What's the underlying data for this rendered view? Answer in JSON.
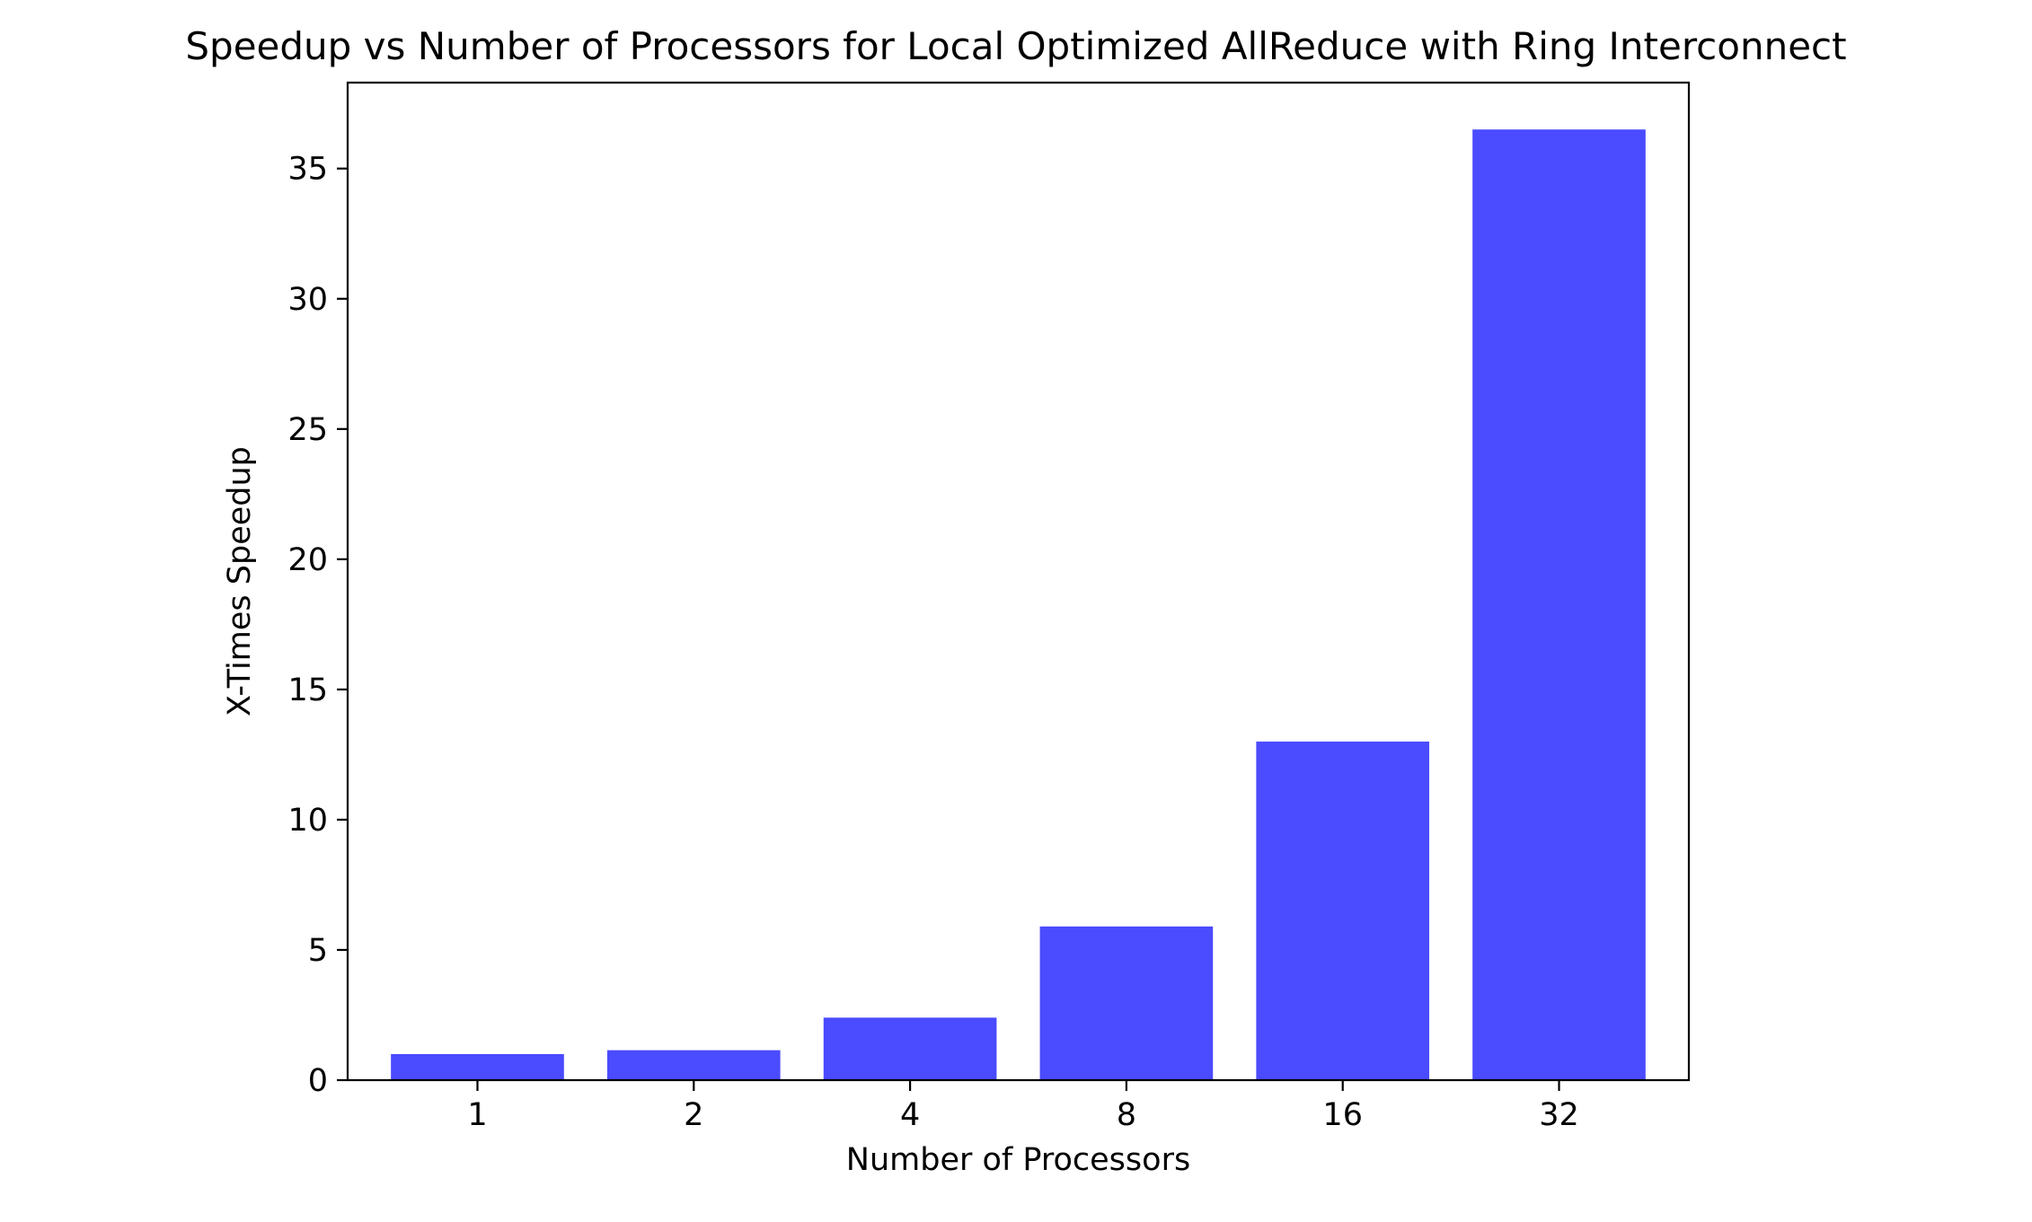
{
  "chart_data": {
    "type": "bar",
    "title": "Speedup vs Number of Processors for Local Optimized AllReduce with Ring Interconnect",
    "xlabel": "Number of Processors",
    "ylabel": "X-Times Speedup",
    "categories": [
      "1",
      "2",
      "4",
      "8",
      "16",
      "32"
    ],
    "values": [
      1.0,
      1.15,
      2.4,
      5.9,
      13.0,
      36.5
    ],
    "ylim": [
      0,
      38.3
    ],
    "yticks": [
      0,
      5,
      10,
      15,
      20,
      25,
      30,
      35
    ],
    "bar_color": "#4b4bff",
    "grid": false,
    "legend": "none"
  }
}
